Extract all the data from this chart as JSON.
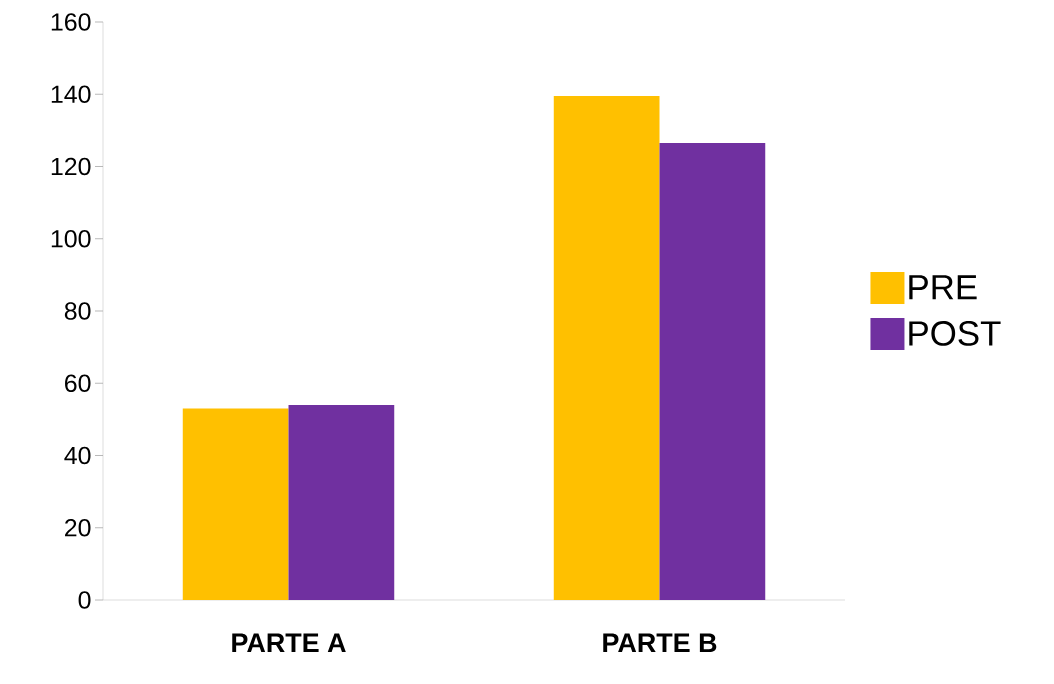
{
  "chart_data": {
    "type": "bar",
    "categories": [
      "PARTE A",
      "PARTE B"
    ],
    "series": [
      {
        "name": "PRE",
        "color": "#ffc000",
        "values": [
          53,
          139.5
        ]
      },
      {
        "name": "POST",
        "color": "#7030a0",
        "values": [
          54,
          126.5
        ]
      }
    ],
    "ylim": [
      0,
      160
    ],
    "yticks": [
      0,
      20,
      40,
      60,
      80,
      100,
      120,
      140,
      160
    ],
    "legend": "right"
  }
}
